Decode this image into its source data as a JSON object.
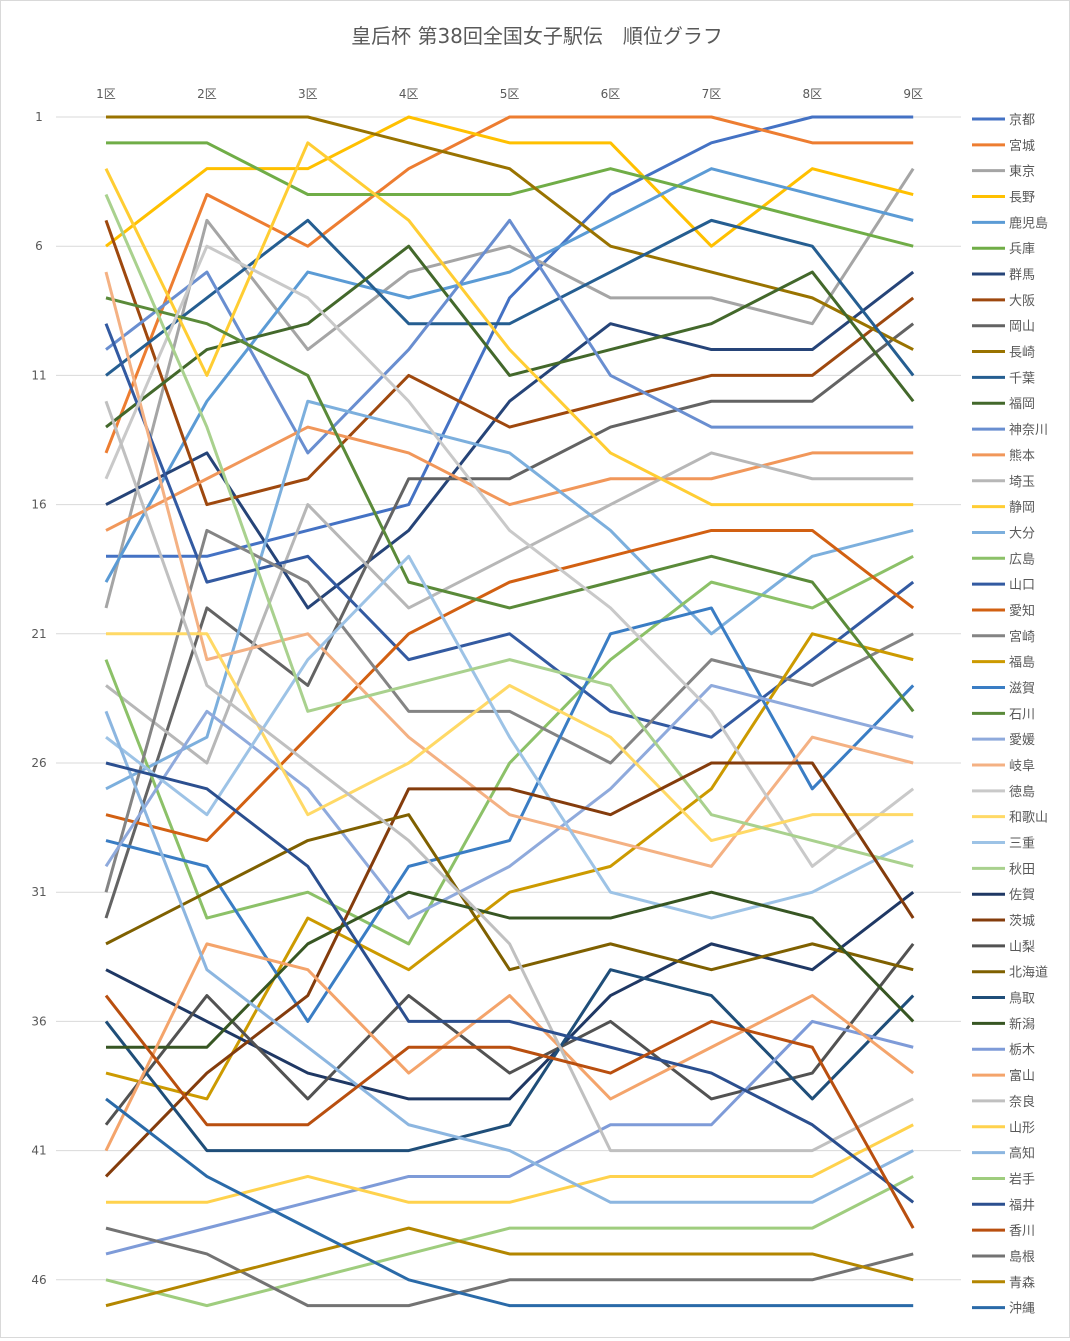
{
  "chart_data": {
    "type": "line",
    "title": "皇后杯 第38回全国女子駅伝　順位グラフ",
    "categories": [
      "1区",
      "2区",
      "3区",
      "4区",
      "5区",
      "6区",
      "7区",
      "8区",
      "9区"
    ],
    "y_axis": {
      "reversed": true,
      "range": [
        1,
        47
      ],
      "ticks": [
        1,
        6,
        11,
        16,
        21,
        26,
        31,
        36,
        41,
        46
      ]
    },
    "grid": true,
    "legend_position": "right",
    "series": [
      {
        "name": "京都",
        "color": "#4472c4",
        "values": [
          18,
          18,
          17,
          16,
          8,
          4,
          2,
          1,
          1
        ]
      },
      {
        "name": "宮城",
        "color": "#ed7d31",
        "values": [
          14,
          4,
          6,
          3,
          1,
          1,
          1,
          2,
          2
        ]
      },
      {
        "name": "東京",
        "color": "#a5a5a5",
        "values": [
          20,
          5,
          10,
          7,
          6,
          8,
          8,
          9,
          3
        ]
      },
      {
        "name": "長野",
        "color": "#ffc000",
        "values": [
          6,
          3,
          3,
          1,
          2,
          2,
          6,
          3,
          4
        ]
      },
      {
        "name": "鹿児島",
        "color": "#5b9bd5",
        "values": [
          19,
          12,
          7,
          8,
          7,
          5,
          3,
          4,
          5
        ]
      },
      {
        "name": "兵庫",
        "color": "#70ad47",
        "values": [
          2,
          2,
          4,
          4,
          4,
          3,
          4,
          5,
          6
        ]
      },
      {
        "name": "群馬",
        "color": "#264478",
        "values": [
          16,
          14,
          20,
          17,
          12,
          9,
          10,
          10,
          7
        ]
      },
      {
        "name": "大阪",
        "color": "#9e480e",
        "values": [
          5,
          16,
          15,
          11,
          13,
          12,
          11,
          11,
          8
        ]
      },
      {
        "name": "岡山",
        "color": "#636363",
        "values": [
          32,
          20,
          23,
          15,
          15,
          13,
          12,
          12,
          9
        ]
      },
      {
        "name": "長崎",
        "color": "#997300",
        "values": [
          1,
          1,
          1,
          2,
          3,
          6,
          7,
          8,
          10
        ]
      },
      {
        "name": "千葉",
        "color": "#255e91",
        "values": [
          11,
          8,
          5,
          9,
          9,
          7,
          5,
          6,
          11
        ]
      },
      {
        "name": "福岡",
        "color": "#43682b",
        "values": [
          13,
          10,
          9,
          6,
          11,
          10,
          9,
          7,
          12
        ]
      },
      {
        "name": "神奈川",
        "color": "#698ed0",
        "values": [
          10,
          7,
          14,
          10,
          5,
          11,
          13,
          13,
          13
        ]
      },
      {
        "name": "熊本",
        "color": "#f1975a",
        "values": [
          17,
          15,
          13,
          14,
          16,
          15,
          15,
          14,
          14
        ]
      },
      {
        "name": "埼玉",
        "color": "#b7b7b7",
        "values": [
          23,
          26,
          16,
          20,
          18,
          16,
          14,
          15,
          15
        ]
      },
      {
        "name": "静岡",
        "color": "#ffcd33",
        "values": [
          3,
          11,
          2,
          5,
          10,
          14,
          16,
          16,
          16
        ]
      },
      {
        "name": "大分",
        "color": "#7cafdd",
        "values": [
          27,
          25,
          12,
          13,
          14,
          17,
          21,
          18,
          17
        ]
      },
      {
        "name": "広島",
        "color": "#8cc168",
        "values": [
          22,
          32,
          31,
          33,
          26,
          22,
          19,
          20,
          18
        ]
      },
      {
        "name": "山口",
        "color": "#335aa1",
        "values": [
          9,
          19,
          18,
          22,
          21,
          24,
          25,
          22,
          19
        ]
      },
      {
        "name": "愛知",
        "color": "#d26012",
        "values": [
          28,
          29,
          25,
          21,
          19,
          18,
          17,
          17,
          20
        ]
      },
      {
        "name": "宮崎",
        "color": "#848484",
        "values": [
          31,
          17,
          19,
          24,
          24,
          26,
          22,
          23,
          21
        ]
      },
      {
        "name": "福島",
        "color": "#cc9a00",
        "values": [
          38,
          39,
          32,
          34,
          31,
          30,
          27,
          21,
          22
        ]
      },
      {
        "name": "滋賀",
        "color": "#3a7dc4",
        "values": [
          29,
          30,
          36,
          30,
          29,
          21,
          20,
          27,
          23
        ]
      },
      {
        "name": "石川",
        "color": "#5a8a39",
        "values": [
          8,
          9,
          11,
          19,
          20,
          19,
          18,
          19,
          24
        ]
      },
      {
        "name": "愛媛",
        "color": "#8faadc",
        "values": [
          30,
          24,
          27,
          32,
          30,
          27,
          23,
          24,
          25
        ]
      },
      {
        "name": "岐阜",
        "color": "#f4b183",
        "values": [
          7,
          22,
          21,
          25,
          28,
          29,
          30,
          25,
          26
        ]
      },
      {
        "name": "徳島",
        "color": "#c9c9c9",
        "values": [
          15,
          6,
          8,
          12,
          17,
          20,
          24,
          30,
          27
        ]
      },
      {
        "name": "和歌山",
        "color": "#ffd966",
        "values": [
          21,
          21,
          28,
          26,
          23,
          25,
          29,
          28,
          28
        ]
      },
      {
        "name": "三重",
        "color": "#9dc3e6",
        "values": [
          25,
          28,
          22,
          18,
          25,
          31,
          32,
          31,
          29
        ]
      },
      {
        "name": "秋田",
        "color": "#a9d18e",
        "values": [
          4,
          13,
          24,
          23,
          22,
          23,
          28,
          29,
          30
        ]
      },
      {
        "name": "佐賀",
        "color": "#1f3864",
        "values": [
          34,
          36,
          38,
          39,
          39,
          35,
          33,
          34,
          31
        ]
      },
      {
        "name": "茨城",
        "color": "#843c0c",
        "values": [
          42,
          38,
          35,
          27,
          27,
          28,
          26,
          26,
          32
        ]
      },
      {
        "name": "山梨",
        "color": "#525252",
        "values": [
          40,
          35,
          39,
          35,
          38,
          36,
          39,
          38,
          33
        ]
      },
      {
        "name": "北海道",
        "color": "#7f6000",
        "values": [
          33,
          31,
          29,
          28,
          34,
          33,
          34,
          33,
          34
        ]
      },
      {
        "name": "鳥取",
        "color": "#1f4e79",
        "values": [
          36,
          41,
          41,
          41,
          40,
          34,
          35,
          39,
          35
        ]
      },
      {
        "name": "新潟",
        "color": "#375623",
        "values": [
          37,
          37,
          33,
          31,
          32,
          32,
          31,
          32,
          36
        ]
      },
      {
        "name": "栃木",
        "color": "#7e9bd8",
        "values": [
          45,
          44,
          43,
          42,
          42,
          40,
          40,
          36,
          37
        ]
      },
      {
        "name": "富山",
        "color": "#f4a46b",
        "values": [
          41,
          33,
          34,
          38,
          35,
          39,
          37,
          35,
          38
        ]
      },
      {
        "name": "奈良",
        "color": "#c0c0c0",
        "values": [
          12,
          23,
          26,
          29,
          33,
          41,
          41,
          41,
          39
        ]
      },
      {
        "name": "山形",
        "color": "#ffd24d",
        "values": [
          43,
          43,
          42,
          43,
          43,
          42,
          42,
          42,
          40
        ]
      },
      {
        "name": "高知",
        "color": "#8cb6e0",
        "values": [
          24,
          34,
          37,
          40,
          41,
          43,
          43,
          43,
          41
        ]
      },
      {
        "name": "岩手",
        "color": "#9fcd7e",
        "values": [
          46,
          47,
          46,
          45,
          44,
          44,
          44,
          44,
          42
        ]
      },
      {
        "name": "福井",
        "color": "#2b4f8f",
        "values": [
          26,
          27,
          30,
          36,
          36,
          37,
          38,
          40,
          43
        ]
      },
      {
        "name": "香川",
        "color": "#b94f0f",
        "values": [
          35,
          40,
          40,
          37,
          37,
          38,
          36,
          37,
          44
        ]
      },
      {
        "name": "島根",
        "color": "#737373",
        "values": [
          44,
          45,
          47,
          47,
          46,
          46,
          46,
          46,
          45
        ]
      },
      {
        "name": "青森",
        "color": "#b38600",
        "values": [
          47,
          46,
          45,
          44,
          45,
          45,
          45,
          45,
          46
        ]
      },
      {
        "name": "沖縄",
        "color": "#2a6aa8",
        "values": [
          39,
          42,
          44,
          46,
          47,
          47,
          47,
          47,
          47
        ]
      }
    ]
  }
}
